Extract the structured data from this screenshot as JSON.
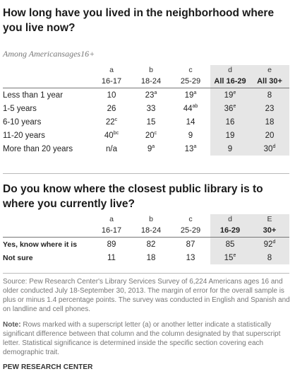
{
  "q1": {
    "title": "How long have you lived in the neighborhood  where you live now?",
    "subtitle": "Among Americansages16+",
    "letters": [
      "a",
      "b",
      "c",
      "d",
      "e"
    ],
    "ages": [
      "16-17",
      "18-24",
      "25-29",
      "All 16-29",
      "All 30+"
    ],
    "rows": [
      {
        "label": "Less than 1 year",
        "cells": [
          {
            "v": "10",
            "s": ""
          },
          {
            "v": "23",
            "s": "a"
          },
          {
            "v": "19",
            "s": "a"
          },
          {
            "v": "19",
            "s": "e"
          },
          {
            "v": "8",
            "s": ""
          }
        ]
      },
      {
        "label": "1-5 years",
        "cells": [
          {
            "v": "26",
            "s": ""
          },
          {
            "v": "33",
            "s": ""
          },
          {
            "v": "44",
            "s": "ab"
          },
          {
            "v": "36",
            "s": "e"
          },
          {
            "v": "23",
            "s": ""
          }
        ]
      },
      {
        "label": "6-10 years",
        "cells": [
          {
            "v": "22",
            "s": "c"
          },
          {
            "v": "15",
            "s": ""
          },
          {
            "v": "14",
            "s": ""
          },
          {
            "v": "16",
            "s": ""
          },
          {
            "v": "18",
            "s": ""
          }
        ]
      },
      {
        "label": "11-20 years",
        "cells": [
          {
            "v": "40",
            "s": "bc"
          },
          {
            "v": "20",
            "s": "c"
          },
          {
            "v": "9",
            "s": ""
          },
          {
            "v": "19",
            "s": ""
          },
          {
            "v": "20",
            "s": ""
          }
        ]
      },
      {
        "label": "More than 20 years",
        "cells": [
          {
            "v": "n/a",
            "s": ""
          },
          {
            "v": "9",
            "s": "a"
          },
          {
            "v": "13",
            "s": "a"
          },
          {
            "v": "9",
            "s": ""
          },
          {
            "v": "30",
            "s": "d"
          }
        ]
      }
    ]
  },
  "q2": {
    "title": "Do you know where the closest public library is to where you currently live?",
    "letters": [
      "a",
      "b",
      "c",
      "d",
      "E"
    ],
    "ages": [
      "16-17",
      "18-24",
      "25-29",
      "16-29",
      "30+"
    ],
    "rows": [
      {
        "label": "Yes, know where it is",
        "cells": [
          {
            "v": "89",
            "s": ""
          },
          {
            "v": "82",
            "s": ""
          },
          {
            "v": "87",
            "s": ""
          },
          {
            "v": "85",
            "s": ""
          },
          {
            "v": "92",
            "s": "d"
          }
        ]
      },
      {
        "label": "Not sure",
        "cells": [
          {
            "v": "11",
            "s": ""
          },
          {
            "v": "18",
            "s": ""
          },
          {
            "v": "13",
            "s": ""
          },
          {
            "v": "15",
            "s": "e"
          },
          {
            "v": "8",
            "s": ""
          }
        ]
      }
    ]
  },
  "source": "Source: Pew Research Center's Library Services Survey of 6,224 Americans ages 16 and older conducted July 18-September 30, 2013. The margin of error for the overall sample is plus or minus 1.4 percentage points. The survey was conducted in English and Spanish and on landline and cell phones.",
  "note_label": "Note:",
  "note_text": " Rows marked with a superscript letter (a) or another letter indicate a statistically significant difference between that column and the column designated by that superscript letter. Statistical significance is determined inside the specific section covering each demographic trait.",
  "org": "PEW RESEARCH CENTER"
}
